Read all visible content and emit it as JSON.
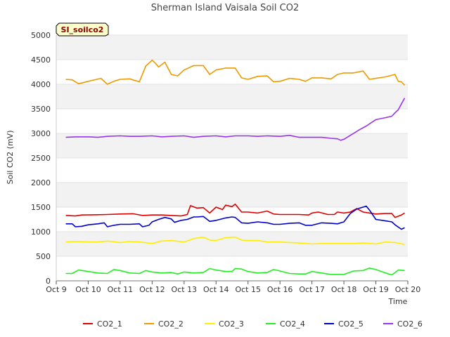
{
  "chart_data": {
    "type": "line",
    "title": "Sherman Island Vaisala Soil CO2",
    "badge": "SI_soilco2",
    "xlabel": "Time",
    "ylabel": "Soil CO2 (mV)",
    "xlim": [
      9,
      20
    ],
    "ylim": [
      0,
      5000
    ],
    "x_ticks": [
      {
        "value": 9,
        "label": "Oct 9"
      },
      {
        "value": 10,
        "label": "Oct 10"
      },
      {
        "value": 11,
        "label": "Oct 11"
      },
      {
        "value": 12,
        "label": "Oct 12"
      },
      {
        "value": 13,
        "label": "Oct 13"
      },
      {
        "value": 14,
        "label": "Oct 14"
      },
      {
        "value": 15,
        "label": "Oct 15"
      },
      {
        "value": 16,
        "label": "Oct 16"
      },
      {
        "value": 17,
        "label": "Oct 17"
      },
      {
        "value": 18,
        "label": "Oct 18"
      },
      {
        "value": 19,
        "label": "Oct 19"
      },
      {
        "value": 20,
        "label": "Oct 20"
      }
    ],
    "y_ticks": [
      0,
      500,
      1000,
      1500,
      2000,
      2500,
      3000,
      3500,
      4000,
      4500,
      5000
    ],
    "grid": true,
    "legend_position": "bottom",
    "series": [
      {
        "name": "CO2_1",
        "color": "#dd0000",
        "x": [
          9.3,
          9.6,
          9.8,
          10.2,
          10.6,
          11.0,
          11.4,
          11.7,
          12.0,
          12.3,
          12.6,
          12.9,
          13.1,
          13.2,
          13.4,
          13.6,
          13.8,
          14.0,
          14.2,
          14.3,
          14.5,
          14.6,
          14.8,
          15.0,
          15.3,
          15.6,
          15.8,
          16.0,
          16.3,
          16.6,
          16.9,
          17.0,
          17.2,
          17.5,
          17.7,
          17.8,
          18.0,
          18.2,
          18.4,
          18.6,
          18.8,
          19.0,
          19.3,
          19.5,
          19.6,
          19.8,
          19.9
        ],
        "values": [
          1330,
          1320,
          1340,
          1345,
          1350,
          1360,
          1365,
          1330,
          1340,
          1340,
          1330,
          1320,
          1350,
          1530,
          1480,
          1490,
          1380,
          1500,
          1450,
          1540,
          1510,
          1560,
          1400,
          1400,
          1380,
          1420,
          1360,
          1350,
          1350,
          1350,
          1340,
          1380,
          1400,
          1350,
          1350,
          1400,
          1380,
          1400,
          1470,
          1400,
          1380,
          1360,
          1370,
          1370,
          1290,
          1340,
          1380
        ]
      },
      {
        "name": "CO2_2",
        "color": "#ee9900",
        "x": [
          9.3,
          9.5,
          9.7,
          10.0,
          10.4,
          10.6,
          10.8,
          11.0,
          11.3,
          11.6,
          11.8,
          12.0,
          12.1,
          12.2,
          12.4,
          12.6,
          12.8,
          13.0,
          13.3,
          13.6,
          13.8,
          14.0,
          14.3,
          14.6,
          14.8,
          15.0,
          15.3,
          15.6,
          15.8,
          16.0,
          16.3,
          16.6,
          16.8,
          17.0,
          17.3,
          17.6,
          17.8,
          18.0,
          18.3,
          18.6,
          18.8,
          19.0,
          19.3,
          19.6,
          19.7,
          19.8,
          19.9
        ],
        "values": [
          4100,
          4090,
          4010,
          4060,
          4120,
          4000,
          4060,
          4100,
          4110,
          4050,
          4370,
          4490,
          4430,
          4350,
          4450,
          4200,
          4170,
          4290,
          4380,
          4380,
          4200,
          4290,
          4330,
          4330,
          4130,
          4100,
          4160,
          4170,
          4050,
          4060,
          4120,
          4100,
          4060,
          4130,
          4130,
          4110,
          4200,
          4230,
          4230,
          4270,
          4100,
          4120,
          4150,
          4200,
          4060,
          4050,
          3980
        ]
      },
      {
        "name": "CO2_3",
        "color": "#ffee00",
        "x": [
          9.3,
          9.6,
          10.0,
          10.3,
          10.6,
          11.0,
          11.3,
          11.6,
          12.0,
          12.3,
          12.6,
          13.0,
          13.3,
          13.6,
          13.8,
          14.0,
          14.3,
          14.6,
          14.8,
          15.0,
          15.3,
          15.6,
          16.0,
          16.3,
          16.6,
          17.0,
          17.3,
          17.6,
          18.0,
          18.3,
          18.6,
          19.0,
          19.3,
          19.6,
          19.9
        ],
        "values": [
          790,
          800,
          790,
          790,
          810,
          780,
          800,
          790,
          760,
          810,
          820,
          790,
          860,
          890,
          830,
          820,
          880,
          890,
          830,
          820,
          820,
          790,
          790,
          780,
          770,
          750,
          760,
          760,
          760,
          760,
          770,
          750,
          790,
          780,
          740
        ]
      },
      {
        "name": "CO2_4",
        "color": "#22ee22",
        "x": [
          9.3,
          9.5,
          9.7,
          10.0,
          10.3,
          10.6,
          10.8,
          11.0,
          11.3,
          11.6,
          11.8,
          12.0,
          12.3,
          12.6,
          12.8,
          13.0,
          13.3,
          13.6,
          13.8,
          14.0,
          14.3,
          14.5,
          14.6,
          14.8,
          15.0,
          15.3,
          15.6,
          15.8,
          16.0,
          16.3,
          16.6,
          16.8,
          17.0,
          17.3,
          17.6,
          18.0,
          18.3,
          18.6,
          18.8,
          19.0,
          19.3,
          19.5,
          19.7,
          19.9
        ],
        "values": [
          150,
          150,
          220,
          190,
          160,
          150,
          230,
          210,
          160,
          150,
          210,
          180,
          160,
          170,
          140,
          180,
          160,
          170,
          250,
          220,
          190,
          190,
          250,
          240,
          190,
          160,
          170,
          230,
          200,
          150,
          140,
          140,
          190,
          160,
          130,
          130,
          200,
          210,
          260,
          230,
          160,
          120,
          220,
          210
        ]
      },
      {
        "name": "CO2_5",
        "color": "#0000cc",
        "x": [
          9.3,
          9.5,
          9.6,
          9.8,
          10.0,
          10.3,
          10.5,
          10.6,
          10.8,
          11.0,
          11.3,
          11.6,
          11.7,
          11.9,
          12.0,
          12.2,
          12.4,
          12.6,
          12.7,
          12.9,
          13.1,
          13.3,
          13.4,
          13.6,
          13.8,
          14.0,
          14.3,
          14.5,
          14.6,
          14.8,
          15.0,
          15.3,
          15.6,
          15.8,
          16.0,
          16.3,
          16.6,
          16.8,
          17.0,
          17.3,
          17.6,
          17.8,
          18.0,
          18.2,
          18.4,
          18.6,
          18.7,
          18.8,
          19.0,
          19.3,
          19.5,
          19.6,
          19.8,
          19.9
        ],
        "values": [
          1160,
          1160,
          1100,
          1110,
          1140,
          1160,
          1180,
          1100,
          1130,
          1150,
          1150,
          1160,
          1100,
          1130,
          1200,
          1250,
          1290,
          1260,
          1190,
          1230,
          1250,
          1300,
          1300,
          1310,
          1210,
          1230,
          1280,
          1300,
          1290,
          1180,
          1170,
          1200,
          1180,
          1150,
          1150,
          1170,
          1180,
          1130,
          1130,
          1180,
          1170,
          1160,
          1200,
          1370,
          1460,
          1500,
          1520,
          1440,
          1250,
          1220,
          1200,
          1140,
          1050,
          1080
        ]
      },
      {
        "name": "CO2_6",
        "color": "#9933ee",
        "x": [
          9.3,
          9.6,
          10.0,
          10.3,
          10.6,
          11.0,
          11.3,
          11.6,
          12.0,
          12.3,
          12.6,
          13.0,
          13.3,
          13.6,
          14.0,
          14.3,
          14.6,
          15.0,
          15.3,
          15.6,
          16.0,
          16.3,
          16.6,
          17.0,
          17.3,
          17.6,
          17.8,
          17.9,
          18.0,
          18.2,
          18.5,
          18.7,
          19.0,
          19.3,
          19.5,
          19.6,
          19.7,
          19.8,
          19.9
        ],
        "values": [
          2920,
          2930,
          2930,
          2920,
          2940,
          2950,
          2940,
          2940,
          2950,
          2930,
          2940,
          2950,
          2920,
          2940,
          2950,
          2930,
          2950,
          2950,
          2940,
          2950,
          2940,
          2960,
          2920,
          2920,
          2920,
          2900,
          2890,
          2860,
          2880,
          2960,
          3080,
          3150,
          3280,
          3320,
          3350,
          3420,
          3480,
          3600,
          3720
        ]
      }
    ]
  }
}
